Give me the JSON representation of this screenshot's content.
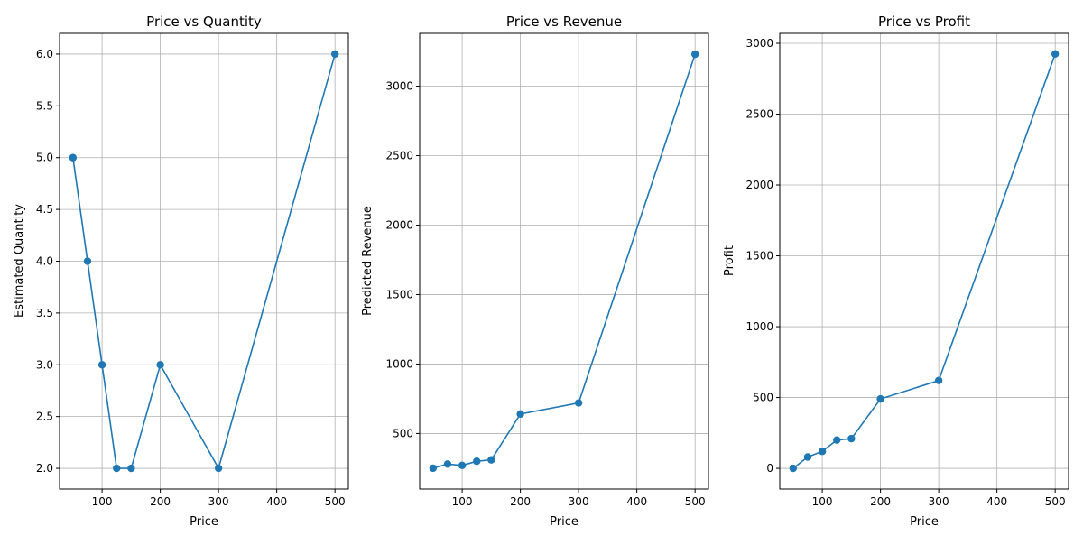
{
  "chart_data": [
    {
      "type": "line",
      "title": "Price vs Quantity",
      "xlabel": "Price",
      "ylabel": "Estimated Quantity",
      "xlim": [
        27,
        523
      ],
      "ylim": [
        1.8,
        6.2
      ],
      "xticks": [
        100,
        200,
        300,
        400,
        500
      ],
      "yticks": [
        2.0,
        2.5,
        3.0,
        3.5,
        4.0,
        4.5,
        5.0,
        5.5,
        6.0
      ],
      "ytick_decimals": 1,
      "grid": true,
      "color": "#1f77b4",
      "x": [
        50,
        75,
        100,
        125,
        150,
        200,
        300,
        500
      ],
      "y": [
        5,
        4,
        3,
        2,
        2,
        3,
        2,
        6
      ]
    },
    {
      "type": "line",
      "title": "Price vs Revenue",
      "xlabel": "Price",
      "ylabel": "Predicted Revenue",
      "xlim": [
        27,
        523
      ],
      "ylim": [
        100,
        3380
      ],
      "xticks": [
        100,
        200,
        300,
        400,
        500
      ],
      "yticks": [
        500,
        1000,
        1500,
        2000,
        2500,
        3000
      ],
      "ytick_decimals": 0,
      "grid": true,
      "color": "#1f77b4",
      "x": [
        50,
        75,
        100,
        125,
        150,
        200,
        300,
        500
      ],
      "y": [
        250,
        280,
        270,
        300,
        310,
        640,
        720,
        3230
      ]
    },
    {
      "type": "line",
      "title": "Price vs Profit",
      "xlabel": "Price",
      "ylabel": "Profit",
      "xlim": [
        27,
        523
      ],
      "ylim": [
        -146,
        3070
      ],
      "xticks": [
        100,
        200,
        300,
        400,
        500
      ],
      "yticks": [
        0,
        500,
        1000,
        1500,
        2000,
        2500,
        3000
      ],
      "ytick_decimals": 0,
      "grid": true,
      "color": "#1f77b4",
      "x": [
        50,
        75,
        100,
        125,
        150,
        200,
        300,
        500
      ],
      "y": [
        0,
        80,
        120,
        200,
        210,
        490,
        620,
        2925
      ]
    }
  ]
}
